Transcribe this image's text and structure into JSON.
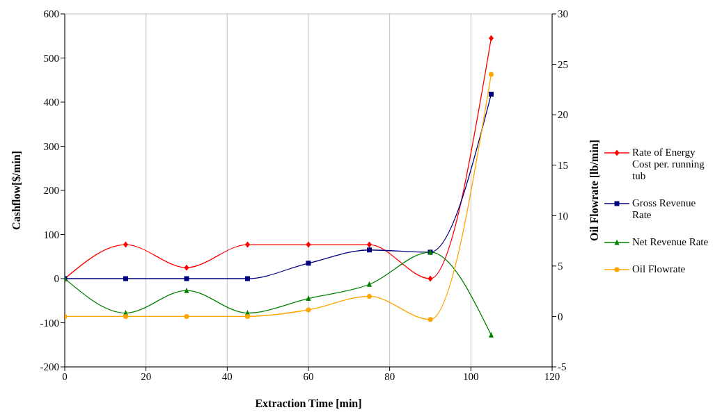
{
  "chart_data": {
    "type": "line",
    "xlabel": "Extraction Time [min]",
    "ylabel": "Cashflow[$/min]",
    "y2label": "Oil Flowrate [lb/min]",
    "x": [
      0,
      15,
      30,
      45,
      60,
      75,
      90,
      105
    ],
    "xlim": [
      0,
      120
    ],
    "xticks": [
      0,
      20,
      40,
      60,
      80,
      100,
      120
    ],
    "ylim": [
      -200,
      600
    ],
    "yticks": [
      -200,
      -100,
      0,
      100,
      200,
      300,
      400,
      500,
      600
    ],
    "y2lim": [
      -5,
      30
    ],
    "y2ticks": [
      -5,
      0,
      5,
      10,
      15,
      20,
      25,
      30
    ],
    "grid": true,
    "legend": "right",
    "series": [
      {
        "name": "Rate of Energy Cost per. running tub",
        "color": "#ff0000",
        "marker": "diamond",
        "values": [
          0,
          77,
          25,
          77,
          77,
          77,
          0,
          545
        ]
      },
      {
        "name": "Gross Revenue Rate",
        "color": "#000080",
        "marker": "square",
        "values": [
          0,
          0,
          0,
          0,
          35,
          65,
          60,
          418
        ]
      },
      {
        "name": "Net Revenue Rate",
        "color": "#008000",
        "marker": "triangle",
        "values": [
          0,
          -78,
          -27,
          -78,
          -45,
          -13,
          60,
          -128
        ]
      },
      {
        "name": "Oil Flowrate",
        "color": "#ffa500",
        "marker": "circle",
        "axis": "y2",
        "values": [
          0,
          0,
          0,
          0,
          0.65,
          2.0,
          -0.3,
          24.0
        ]
      }
    ]
  }
}
